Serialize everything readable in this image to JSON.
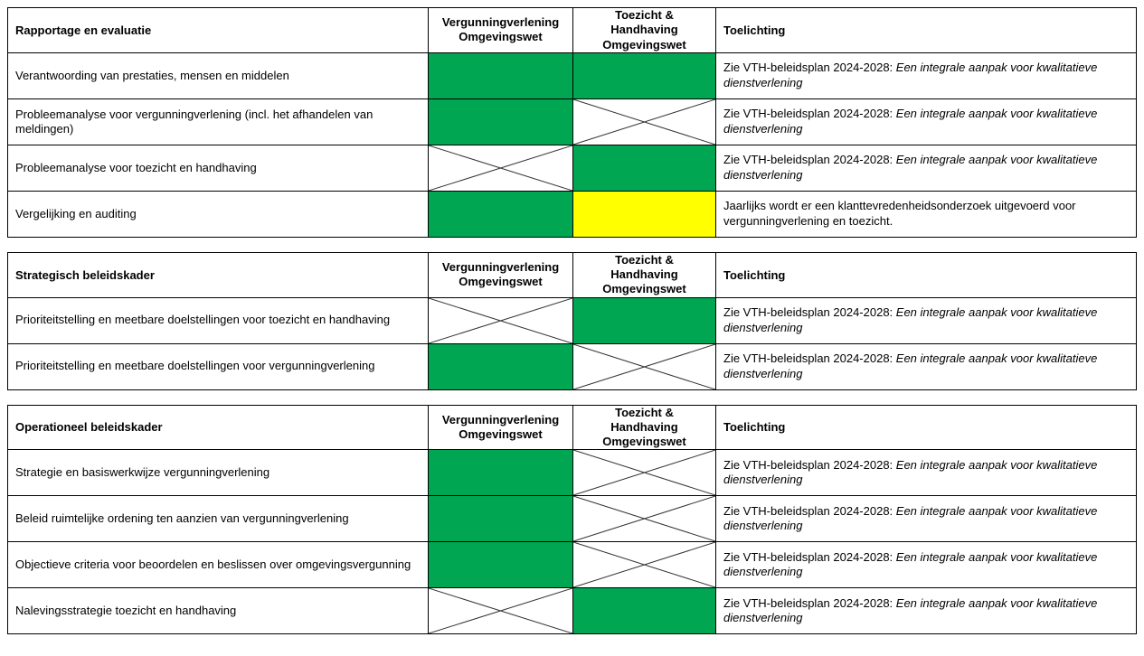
{
  "colors": {
    "green": "#00a651",
    "yellow": "#ffff00",
    "border": "#000000"
  },
  "tables": [
    {
      "title": "Rapportage en evaluatie",
      "col_headers": [
        "Vergunningverlening Omgevingswet",
        "Toezicht & Handhaving Omgevingswet",
        "Toelichting"
      ],
      "rows": [
        {
          "label": "Verantwoording van prestaties, mensen en middelen",
          "vergunningverlening": "green",
          "toezicht_handhaving": "green",
          "toelichting": {
            "text": "Zie VTH-beleidsplan 2024-2028: ",
            "italic": "Een integrale aanpak voor kwalitatieve dienstverlening"
          }
        },
        {
          "label": "Probleemanalyse voor vergunningverlening (incl. het afhandelen van meldingen)",
          "vergunningverlening": "green",
          "toezicht_handhaving": "cross",
          "toelichting": {
            "text": "Zie VTH-beleidsplan 2024-2028: ",
            "italic": "Een integrale aanpak voor kwalitatieve dienstverlening"
          }
        },
        {
          "label": "Probleemanalyse voor toezicht en handhaving",
          "vergunningverlening": "cross",
          "toezicht_handhaving": "green",
          "toelichting": {
            "text": "Zie VTH-beleidsplan 2024-2028: ",
            "italic": "Een integrale aanpak voor kwalitatieve dienstverlening"
          }
        },
        {
          "label": "Vergelijking en auditing",
          "vergunningverlening": "green",
          "toezicht_handhaving": "yellow",
          "toelichting": {
            "text": "Jaarlijks wordt er een klanttevredenheidsonderzoek uitgevoerd voor vergunningverlening en toezicht.",
            "italic": ""
          }
        }
      ]
    },
    {
      "title": "Strategisch beleidskader",
      "col_headers": [
        "Vergunningverlening Omgevingswet",
        "Toezicht & Handhaving Omgevingswet",
        "Toelichting"
      ],
      "rows": [
        {
          "label": "Prioriteitstelling en meetbare doelstellingen voor toezicht en handhaving",
          "vergunningverlening": "cross",
          "toezicht_handhaving": "green",
          "toelichting": {
            "text": "Zie VTH-beleidsplan 2024-2028: ",
            "italic": "Een integrale aanpak voor kwalitatieve dienstverlening"
          }
        },
        {
          "label": "Prioriteitstelling en meetbare doelstellingen voor vergunningverlening",
          "vergunningverlening": "green",
          "toezicht_handhaving": "cross",
          "toelichting": {
            "text": "Zie VTH-beleidsplan 2024-2028: ",
            "italic": "Een integrale aanpak voor kwalitatieve dienstverlening"
          }
        }
      ]
    },
    {
      "title": "Operationeel beleidskader",
      "col_headers": [
        "Vergunningverlening Omgevingswet",
        "Toezicht & Handhaving Omgevingswet",
        "Toelichting"
      ],
      "rows": [
        {
          "label": "Strategie en basiswerkwijze vergunningverlening",
          "vergunningverlening": "green",
          "toezicht_handhaving": "cross",
          "toelichting": {
            "text": "Zie VTH-beleidsplan 2024-2028: ",
            "italic": "Een integrale aanpak voor kwalitatieve dienstverlening"
          }
        },
        {
          "label": "Beleid ruimtelijke ordening ten aanzien van vergunningverlening",
          "vergunningverlening": "green",
          "toezicht_handhaving": "cross",
          "toelichting": {
            "text": "Zie VTH-beleidsplan 2024-2028: ",
            "italic": "Een integrale aanpak voor kwalitatieve dienstverlening"
          }
        },
        {
          "label": "Objectieve criteria voor beoordelen en beslissen over omgevingsvergunning",
          "vergunningverlening": "green",
          "toezicht_handhaving": "cross",
          "toelichting": {
            "text": "Zie VTH-beleidsplan 2024-2028: ",
            "italic": "Een integrale aanpak voor kwalitatieve dienstverlening"
          }
        },
        {
          "label": "Nalevingsstrategie toezicht en handhaving",
          "vergunningverlening": "cross",
          "toezicht_handhaving": "green",
          "toelichting": {
            "text": "Zie VTH-beleidsplan 2024-2028: ",
            "italic": "Een integrale aanpak voor kwalitatieve dienstverlening"
          }
        }
      ]
    }
  ]
}
